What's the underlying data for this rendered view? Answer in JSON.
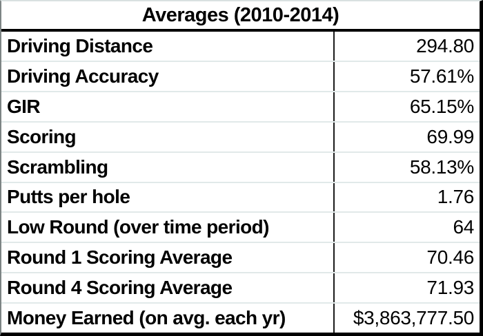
{
  "chart_data": {
    "type": "table",
    "title": "Averages (2010-2014)",
    "rows": [
      {
        "label": "Driving Distance",
        "value": "294.80"
      },
      {
        "label": "Driving Accuracy",
        "value": "57.61%"
      },
      {
        "label": "GIR",
        "value": "65.15%"
      },
      {
        "label": "Scoring",
        "value": "69.99"
      },
      {
        "label": "Scrambling",
        "value": "58.13%"
      },
      {
        "label": "Putts per hole",
        "value": "1.76"
      },
      {
        "label": "Low Round (over time period)",
        "value": "64"
      },
      {
        "label": "Round 1 Scoring Average",
        "value": "70.46"
      },
      {
        "label": "Round 4 Scoring Average",
        "value": "71.93"
      },
      {
        "label": "Money Earned (on avg. each yr)",
        "value": "$3,863,777.50"
      }
    ]
  },
  "colors": {
    "text": "#000000",
    "background": "#ffffff",
    "heavy_border": "#000000",
    "grid_line": "#e1e9e9",
    "column_divider": "#1a1a1a"
  }
}
